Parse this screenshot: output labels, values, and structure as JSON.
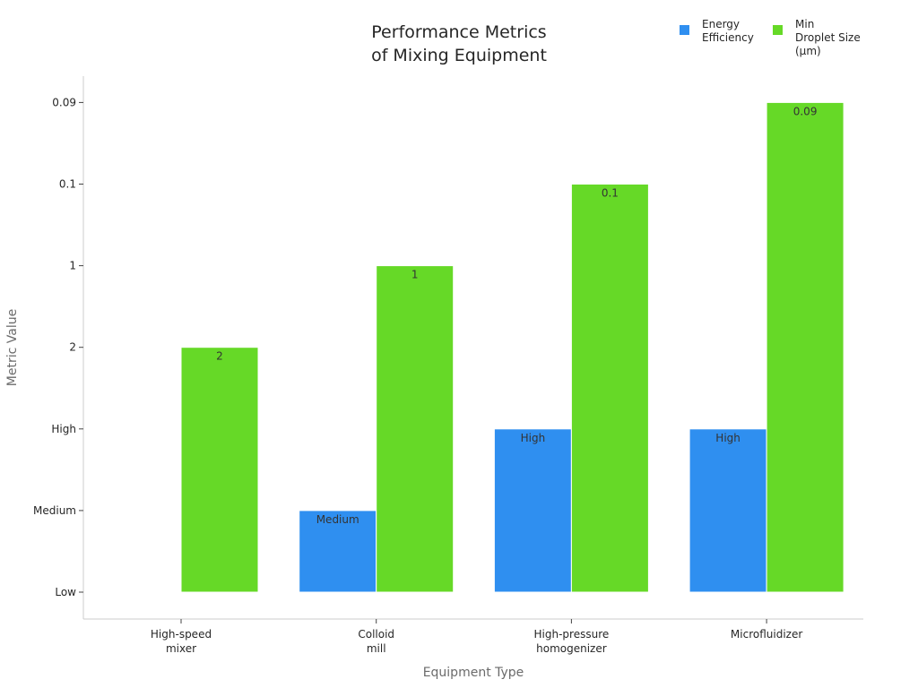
{
  "chart_data": {
    "type": "bar",
    "title": [
      "Performance Metrics",
      "of Mixing Equipment"
    ],
    "xlabel": "Equipment Type",
    "ylabel": "Metric Value",
    "categories": [
      [
        "High-speed",
        "mixer"
      ],
      [
        "Colloid",
        "mill"
      ],
      [
        "High-pressure",
        "homogenizer"
      ],
      [
        "Microfluidizer"
      ]
    ],
    "y_ticks": [
      "Low",
      "Medium",
      "High",
      "2",
      "1",
      "0.1",
      "0.09"
    ],
    "series": [
      {
        "name": [
          "Energy",
          "Efficiency"
        ],
        "color": "#2f8ff0",
        "values": [
          "Low",
          "Medium",
          "High",
          "High"
        ],
        "labels": [
          "",
          "Medium",
          "High",
          "High"
        ]
      },
      {
        "name": [
          "Min",
          "Droplet Size",
          "(μm)"
        ],
        "color": "#66d927",
        "values": [
          "2",
          "1",
          "0.1",
          "0.09"
        ],
        "labels": [
          "2",
          "1",
          "0.1",
          "0.09"
        ]
      }
    ],
    "legend_position": "top-right",
    "grid": false
  }
}
